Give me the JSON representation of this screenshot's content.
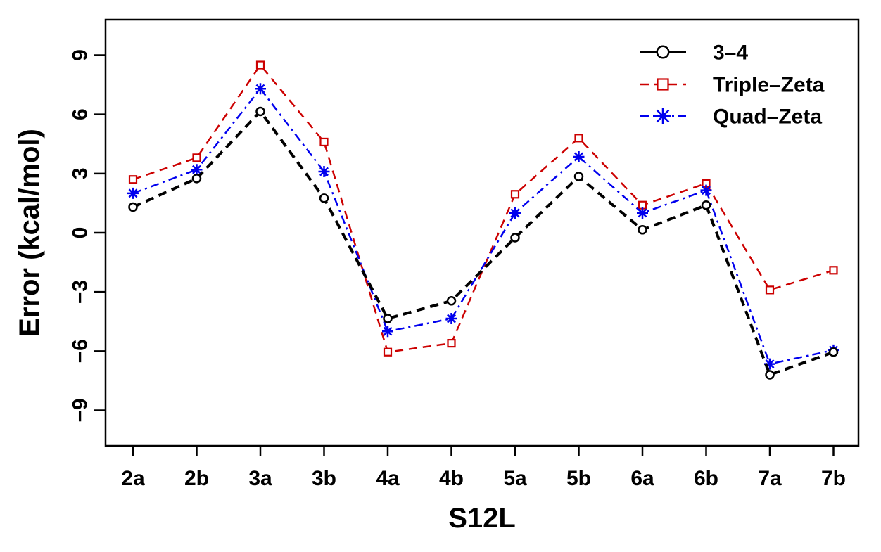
{
  "chart_data": {
    "type": "line",
    "title": "",
    "xlabel": "S12L",
    "ylabel": "Error (kcal/mol)",
    "categories": [
      "2a",
      "2b",
      "3a",
      "3b",
      "4a",
      "4b",
      "5a",
      "5b",
      "6a",
      "6b",
      "7a",
      "7b"
    ],
    "ylim": [
      -10.8,
      10.8
    ],
    "yticks": [
      -9,
      -6,
      -3,
      0,
      3,
      6,
      9
    ],
    "ytick_labels": [
      "−9",
      "−6",
      "−3",
      "0",
      "3",
      "6",
      "9"
    ],
    "grid": false,
    "legend_position": "top-right",
    "series": [
      {
        "name": "3–4",
        "color": "#000000",
        "line_style": "dashed",
        "marker": "circle",
        "values": [
          1.3,
          2.75,
          6.15,
          1.75,
          -4.35,
          -3.45,
          -0.25,
          2.85,
          0.15,
          1.4,
          -7.2,
          -6.05
        ]
      },
      {
        "name": "Triple–Zeta",
        "color": "#cc0000",
        "line_style": "dashed",
        "marker": "square",
        "values": [
          2.7,
          3.8,
          8.5,
          4.6,
          -6.05,
          -5.6,
          1.95,
          4.8,
          1.4,
          2.5,
          -2.9,
          -1.9
        ]
      },
      {
        "name": "Quad–Zeta",
        "color": "#0000ee",
        "line_style": "dash-dot",
        "marker": "asterisk",
        "values": [
          2.0,
          3.2,
          7.3,
          3.1,
          -5.0,
          -4.35,
          1.0,
          3.85,
          1.0,
          2.15,
          -6.65,
          -5.95
        ]
      }
    ]
  }
}
